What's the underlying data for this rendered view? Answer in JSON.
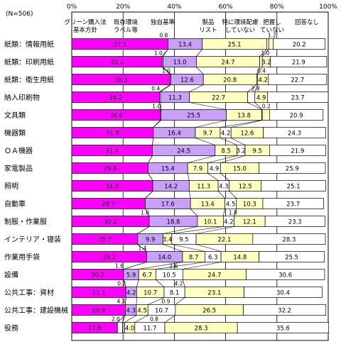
{
  "chart_data": {
    "type": "bar",
    "stacked": true,
    "orientation": "horizontal",
    "n_label": "(N=506)",
    "xlim": [
      0,
      100
    ],
    "x_ticks": [
      "0%",
      "20%",
      "40%",
      "60%",
      "80%",
      "100%"
    ],
    "grid": true,
    "legend": "top, labels placed above columns with leader lines",
    "categories": [
      "紙類：情報用紙",
      "紙類：印刷用紙",
      "紙類：衛生用紙",
      "納入印刷物",
      "文具類",
      "機器類",
      "ＯＡ機器",
      "家電製品",
      "照明",
      "自動車",
      "制服・作業服",
      "インテリア・寝装",
      "作業用手袋",
      "設備",
      "公共工事：資材",
      "公共工事：建設機械",
      "役務"
    ],
    "series": [
      {
        "name": "グリーン購入法基本方針",
        "color": "#ff00ff",
        "values": [
          37.5,
          35.2,
          38.3,
          34.2,
          34.6,
          31.8,
          31.4,
          29.8,
          31.6,
          28.7,
          30.2,
          25.7,
          29.2,
          20.2,
          21.1,
          20.9,
          17.8
        ]
      },
      {
        "name": "既存環境ラベル等",
        "color": "#ffffff",
        "values": [
          0.0,
          0.4,
          0.4,
          0.4,
          0.2,
          0.0,
          0.0,
          0.0,
          0.0,
          0.0,
          0.0,
          0.0,
          0.0,
          0.0,
          0.0,
          0.0,
          2.0
        ]
      },
      {
        "name": "独自基準",
        "color": "#c8a0f8",
        "values": [
          13.4,
          13.0,
          12.6,
          11.3,
          25.5,
          16.4,
          24.5,
          15.4,
          14.2,
          17.6,
          18.8,
          9.9,
          14.0,
          5.9,
          4.2,
          4.3,
          0.8
        ]
      },
      {
        "name": "製品リスト",
        "color": "#ffffc0",
        "values": [
          25.1,
          24.7,
          20.8,
          22.7,
          13.8,
          9.7,
          8.5,
          7.9,
          11.3,
          13.4,
          10.1,
          3.4,
          8.7,
          6.7,
          10.7,
          4.5,
          4.0
        ]
      },
      {
        "name": "特に環境配慮していない",
        "color": "#ffffff",
        "values": [
          0.8,
          1.0,
          0.4,
          2.8,
          0.2,
          4.2,
          3.2,
          4.9,
          4.3,
          4.5,
          4.2,
          9.5,
          6.3,
          10.5,
          8.1,
          10.7,
          11.7
        ]
      },
      {
        "name": "把握していない",
        "color": "#ffffc0",
        "values": [
          1.8,
          3.2,
          4.2,
          4.9,
          2.8,
          12.6,
          9.5,
          15.0,
          12.5,
          10.3,
          12.1,
          22.1,
          14.8,
          24.7,
          23.1,
          26.5,
          28.3
        ]
      },
      {
        "name": "回答なし",
        "color": "#ffffff",
        "values": [
          20.2,
          21.9,
          22.7,
          23.7,
          20.9,
          24.3,
          21.9,
          25.9,
          25.1,
          23.7,
          23.3,
          28.3,
          25.5,
          30.6,
          30.4,
          32.2,
          35.6
        ]
      }
    ],
    "series_label_lines": [
      [
        "グリーン購入法",
        "基本方針"
      ],
      [
        "既存環境",
        "ラベル等"
      ],
      [
        "独自基準"
      ],
      [
        "製品",
        "リスト"
      ],
      [
        "特に環境配慮",
        "していない"
      ],
      [
        "把握し",
        "ていない"
      ],
      [
        "回答なし"
      ]
    ],
    "small_value_labels": [
      [
        "0.8",
        "1.2"
      ],
      [
        "1.0",
        "1.0"
      ],
      [
        "1.0",
        "0.4"
      ],
      [
        "0.4",
        "2.8"
      ],
      [
        "1.0",
        "0.2"
      ],
      [
        "",
        ""
      ],
      [
        "",
        ""
      ],
      [
        "",
        ""
      ],
      [
        "",
        ""
      ],
      [
        "",
        ""
      ],
      [
        "1.0",
        "1.8"
      ],
      [
        "",
        ""
      ],
      [
        "1.4",
        ""
      ],
      [
        "1.6",
        "2.6"
      ],
      [
        "0.2",
        "4.2"
      ],
      [
        "4.3",
        "0.9"
      ],
      [
        "2.0",
        "0.8"
      ]
    ]
  }
}
